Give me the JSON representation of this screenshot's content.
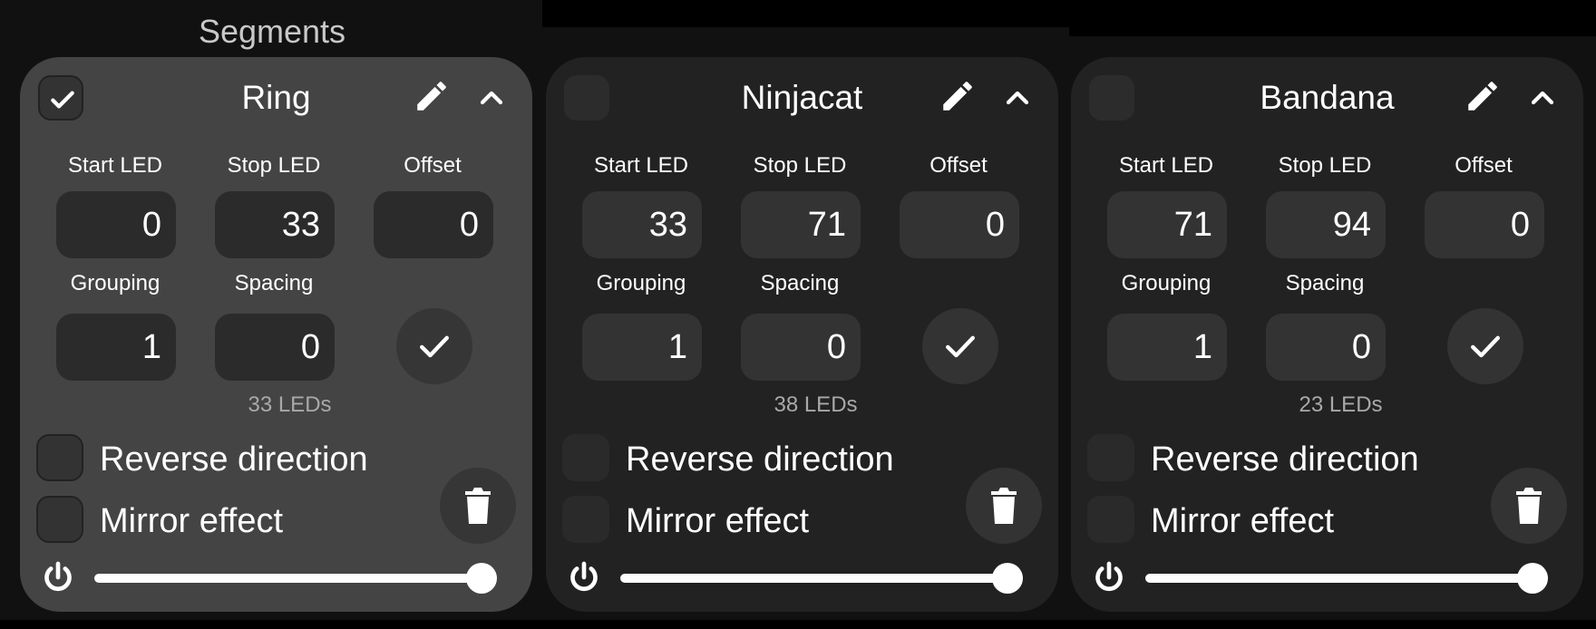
{
  "section_title": "Segments",
  "labels": {
    "start": "Start LED",
    "stop": "Stop LED",
    "offset": "Offset",
    "grouping": "Grouping",
    "spacing": "Spacing",
    "reverse": "Reverse direction",
    "mirror": "Mirror effect"
  },
  "icons": {
    "select": "checkmark-icon",
    "edit": "pencil-icon",
    "collapse": "chevron-up-icon",
    "apply": "checkmark-icon",
    "delete": "trash-icon",
    "power": "power-icon"
  },
  "colors": {
    "selected_card": "#444444",
    "card": "#222222",
    "page_bg": "#000000"
  },
  "segments": [
    {
      "name": "Ring",
      "selected": true,
      "start": "0",
      "stop": "33",
      "offset": "0",
      "grouping": "1",
      "spacing": "0",
      "led_count": "33 LEDs",
      "reverse": false,
      "mirror": false,
      "brightness": 0.97
    },
    {
      "name": "Ninjacat",
      "selected": false,
      "start": "33",
      "stop": "71",
      "offset": "0",
      "grouping": "1",
      "spacing": "0",
      "led_count": "38 LEDs",
      "reverse": false,
      "mirror": false,
      "brightness": 0.97
    },
    {
      "name": "Bandana",
      "selected": false,
      "start": "71",
      "stop": "94",
      "offset": "0",
      "grouping": "1",
      "spacing": "0",
      "led_count": "23 LEDs",
      "reverse": false,
      "mirror": false,
      "brightness": 0.97
    }
  ]
}
